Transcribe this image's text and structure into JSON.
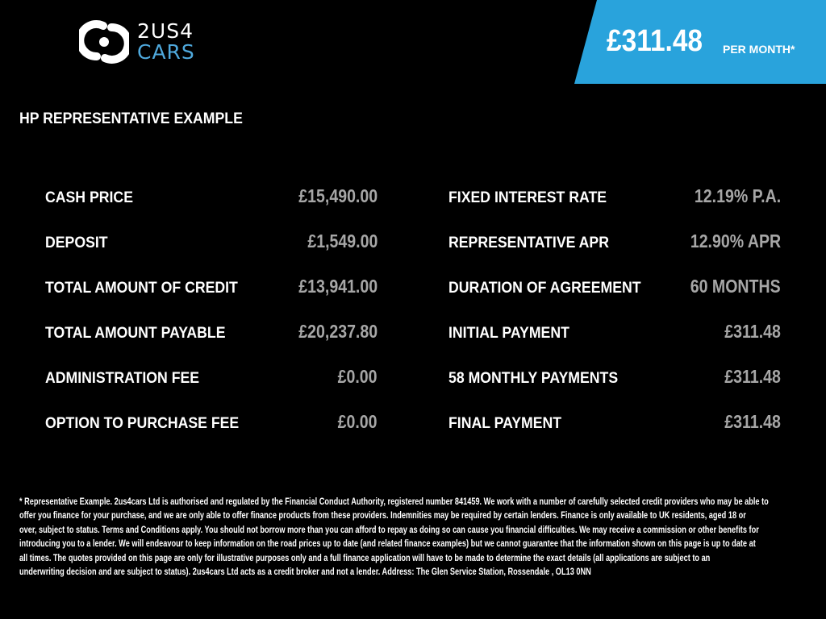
{
  "brand": {
    "line1": "2US4",
    "line2": "CARS"
  },
  "banner": {
    "price": "£311.48",
    "per": "PER MONTH*",
    "color": "#29a3dc"
  },
  "title": "HP REPRESENTATIVE EXAMPLE",
  "left": [
    {
      "label": "CASH PRICE",
      "value": "£15,490.00"
    },
    {
      "label": "DEPOSIT",
      "value": "£1,549.00"
    },
    {
      "label": "TOTAL AMOUNT OF CREDIT",
      "value": "£13,941.00"
    },
    {
      "label": "TOTAL AMOUNT PAYABLE",
      "value": "£20,237.80"
    },
    {
      "label": "ADMINISTRATION FEE",
      "value": "£0.00"
    },
    {
      "label": "OPTION TO PURCHASE FEE",
      "value": "£0.00"
    }
  ],
  "right": [
    {
      "label": "FIXED INTEREST RATE",
      "value": "12.19% P.A."
    },
    {
      "label": "REPRESENTATIVE APR",
      "value": "12.90% APR"
    },
    {
      "label": "DURATION OF AGREEMENT",
      "value": "60 MONTHS"
    },
    {
      "label": "INITIAL PAYMENT",
      "value": "£311.48"
    },
    {
      "label": "58 MONTHLY PAYMENTS",
      "value": "£311.48"
    },
    {
      "label": "FINAL PAYMENT",
      "value": "£311.48"
    }
  ],
  "footer": [
    "* Representative Example. 2us4cars Ltd is authorised and regulated by the Financial Conduct Authority, registered number 841459. We work with a number of carefully selected credit providers who may be able to",
    "offer you finance for your purchase, and we are only able to offer finance products from these providers. Indemnities may be required by certain lenders. Finance is only available to UK residents, aged 18 or",
    "over, subject to status. Terms and Conditions apply. You should not borrow more than you can afford to repay as doing so can cause you financial difficulties. We may receive a commission or other benefits for",
    "introducing you to a lender. We will endeavour to keep information on the road prices up to date (and related finance examples) but we cannot guarantee that the information shown on this page is up to date at",
    "all times. The quotes provided on this page are only for illustrative purposes only and a full finance application will have to be made to determine the exact details (all applications are subject to an",
    "underwriting decision and are subject to status). 2us4cars Ltd acts as a credit broker and not a lender. Address: The Glen Service Station, Rossendale , OL13 0NN"
  ]
}
